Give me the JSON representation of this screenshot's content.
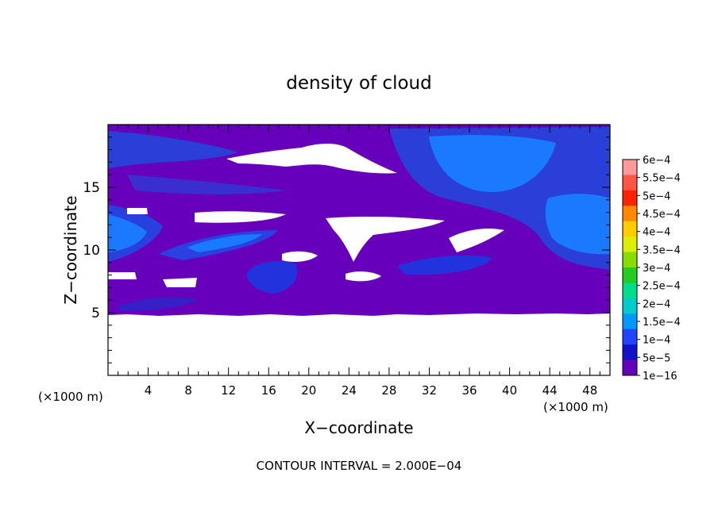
{
  "chart_data": {
    "type": "heatmap",
    "title": "density of cloud",
    "xlabel": "X−coordinate",
    "ylabel": "Z−coordinate",
    "x_unit_left": "(×1000 m)",
    "x_unit_right": "(×1000 m)",
    "footer": "CONTOUR INTERVAL = 2.000E−04",
    "xlim": [
      0,
      50
    ],
    "ylim": [
      0,
      20
    ],
    "x_ticks": [
      "4",
      "8",
      "12",
      "16",
      "20",
      "24",
      "28",
      "32",
      "36",
      "40",
      "44",
      "48"
    ],
    "x_tick_values": [
      4,
      8,
      12,
      16,
      20,
      24,
      28,
      32,
      36,
      40,
      44,
      48
    ],
    "y_ticks": [
      "5",
      "10",
      "15"
    ],
    "y_tick_values": [
      5,
      10,
      15
    ],
    "colorbar": {
      "labels": [
        "6e−4",
        "5.5e−4",
        "5e−4",
        "4.5e−4",
        "4e−4",
        "3.5e−4",
        "3e−4",
        "2.5e−4",
        "2e−4",
        "1.5e−4",
        "1e−4",
        "5e−5",
        "1e−16"
      ],
      "colors": [
        "#ff9999",
        "#ff5544",
        "#ff2200",
        "#ff8800",
        "#ffcc00",
        "#ddee00",
        "#88dd00",
        "#22cc22",
        "#00dd88",
        "#00cccc",
        "#0099ff",
        "#2244ff",
        "#1111cc",
        "#6600bb"
      ]
    },
    "colors": {
      "base": "#6600bb",
      "low": "#2244dd",
      "mid": "#1a7aff",
      "clear": "#ffffff"
    }
  }
}
